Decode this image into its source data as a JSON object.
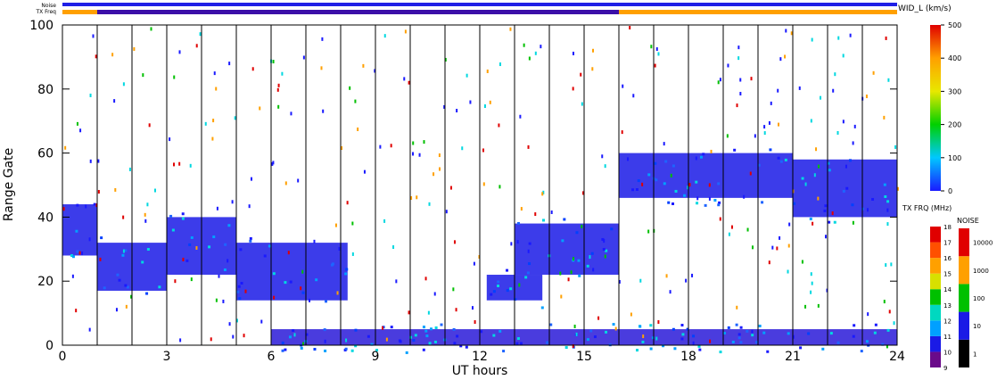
{
  "labels": {
    "noise_bar": "Noise",
    "txfreq_bar": "TX Freq",
    "xlabel": "UT hours",
    "ylabel": "Range Gate",
    "wid_title": "WID_L (km/s)",
    "txfrq_title": "TX FRQ (MHz)",
    "noise_title": "NOISE"
  },
  "colors": {
    "noise_bar": "#1f1fe6",
    "txfreq_orange": "#ffa000",
    "txfreq_purple": "#3b0fa8",
    "axis": "#000000"
  },
  "status_bars": {
    "noise": [
      {
        "from": 0,
        "to": 24,
        "color": "#1f1fe6"
      }
    ],
    "txfreq": [
      {
        "from": 0,
        "to": 1,
        "color": "#ffa000"
      },
      {
        "from": 1,
        "to": 16,
        "color": "#3b0fa8"
      },
      {
        "from": 16,
        "to": 24,
        "color": "#ffa000"
      }
    ]
  },
  "chart_data": {
    "type": "heatmap",
    "xlabel": "UT hours",
    "ylabel": "Range Gate",
    "xlim": [
      0,
      24
    ],
    "ylim": [
      0,
      100
    ],
    "xticks": [
      "0",
      "3",
      "6",
      "9",
      "12",
      "15",
      "18",
      "21",
      "24"
    ],
    "yticks": [
      "0",
      "20",
      "40",
      "60",
      "80",
      "100"
    ],
    "scan_boundaries_hours": [
      1,
      2,
      3,
      4,
      5,
      6,
      7,
      8,
      9,
      10,
      11,
      12,
      13,
      14,
      15,
      16,
      17,
      18,
      19,
      20,
      21,
      22,
      23
    ],
    "echo_regions": [
      {
        "t0": 0.0,
        "t1": 1.0,
        "g0": 28,
        "g1": 44
      },
      {
        "t0": 1.0,
        "t1": 3.0,
        "g0": 17,
        "g1": 32
      },
      {
        "t0": 3.0,
        "t1": 5.0,
        "g0": 22,
        "g1": 40
      },
      {
        "t0": 5.0,
        "t1": 8.2,
        "g0": 14,
        "g1": 32
      },
      {
        "t0": 13.0,
        "t1": 16.0,
        "g0": 22,
        "g1": 38
      },
      {
        "t0": 12.2,
        "t1": 13.8,
        "g0": 14,
        "g1": 22
      },
      {
        "t0": 21.0,
        "t1": 24.0,
        "g0": 40,
        "g1": 58
      },
      {
        "t0": 16.0,
        "t1": 21.0,
        "g0": 46,
        "g1": 60
      },
      {
        "t0": 6.0,
        "t1": 24.0,
        "g0": 0,
        "g1": 5
      }
    ],
    "colorbars": [
      {
        "name": "WID_L (km/s)",
        "ticks": [
          "0",
          "100",
          "200",
          "300",
          "400",
          "500"
        ],
        "min": 0,
        "max": 500
      },
      {
        "name": "TX FRQ (MHz)",
        "ticks": [
          "9",
          "10",
          "11",
          "12",
          "13",
          "14",
          "15",
          "16",
          "17",
          "18"
        ],
        "min": 9,
        "max": 18
      },
      {
        "name": "NOISE",
        "ticks": [
          "1",
          "10",
          "100",
          "1000",
          "10000"
        ],
        "scale": "log"
      }
    ]
  }
}
